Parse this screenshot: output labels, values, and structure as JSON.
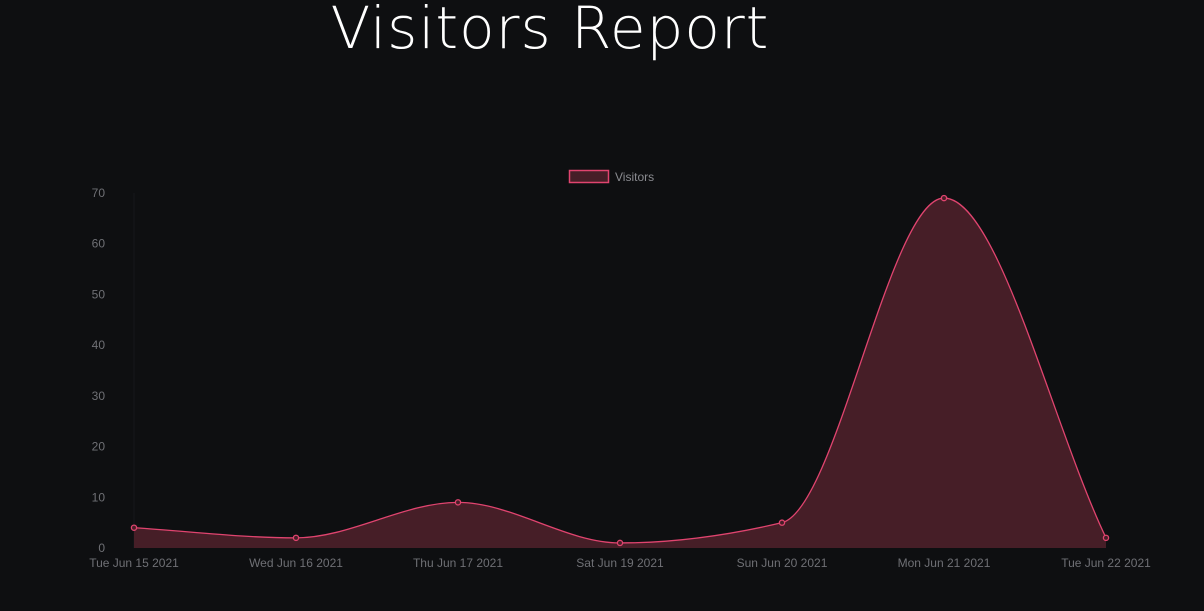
{
  "page": {
    "title": "Visitors Report"
  },
  "chart_data": {
    "type": "area",
    "categories": [
      "Tue Jun 15 2021",
      "Wed Jun 16 2021",
      "Thu Jun 17 2021",
      "Sat Jun 19 2021",
      "Sun Jun 20 2021",
      "Mon Jun 21 2021",
      "Tue Jun 22 2021"
    ],
    "series": [
      {
        "name": "Visitors",
        "values": [
          4,
          2,
          9,
          1,
          5,
          69,
          2
        ],
        "line_color": "#e0446f",
        "fill_color": "#461e27"
      }
    ],
    "yticks": [
      0,
      10,
      20,
      30,
      40,
      50,
      60,
      70
    ],
    "ylim": [
      0,
      70
    ],
    "legend_position": "top-center",
    "grid": false
  }
}
